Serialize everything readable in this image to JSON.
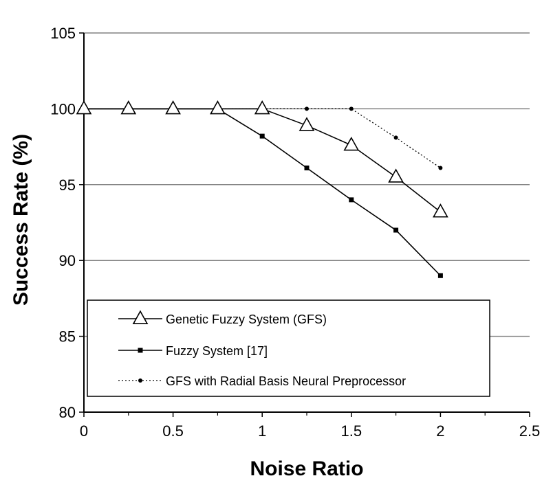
{
  "chart_data": {
    "type": "line",
    "xlabel": "Noise Ratio",
    "ylabel": "Success Rate (%)",
    "xlim": [
      0,
      2.5
    ],
    "ylim": [
      80,
      105
    ],
    "xticks": [
      "0",
      "0.5",
      "1",
      "1.5",
      "2",
      "2.5"
    ],
    "yticks": [
      "80",
      "85",
      "90",
      "95",
      "100",
      "105"
    ],
    "grid": "horizontal",
    "legend_position": "lower-center",
    "series": [
      {
        "name": "Genetic Fuzzy System (GFS)",
        "marker": "triangle",
        "line_style": "solid",
        "x": [
          0,
          0.25,
          0.5,
          0.75,
          1.0,
          1.25,
          1.5,
          1.75,
          2.0
        ],
        "y": [
          100,
          100,
          100,
          100,
          100,
          98.9,
          97.6,
          95.5,
          93.2
        ]
      },
      {
        "name": "Fuzzy System [17]",
        "marker": "square",
        "line_style": "solid",
        "x": [
          0,
          0.25,
          0.5,
          0.75,
          1.0,
          1.25,
          1.5,
          1.75,
          2.0
        ],
        "y": [
          100,
          100,
          100,
          100,
          98.2,
          96.1,
          94.0,
          92.0,
          89.0
        ]
      },
      {
        "name": "GFS with Radial Basis Neural Preprocessor",
        "marker": "circle",
        "line_style": "dotted",
        "x": [
          0,
          0.25,
          0.5,
          0.75,
          1.0,
          1.25,
          1.5,
          1.75,
          2.0
        ],
        "y": [
          100,
          100,
          100,
          100,
          100,
          100,
          100,
          98.1,
          96.1
        ]
      }
    ]
  }
}
